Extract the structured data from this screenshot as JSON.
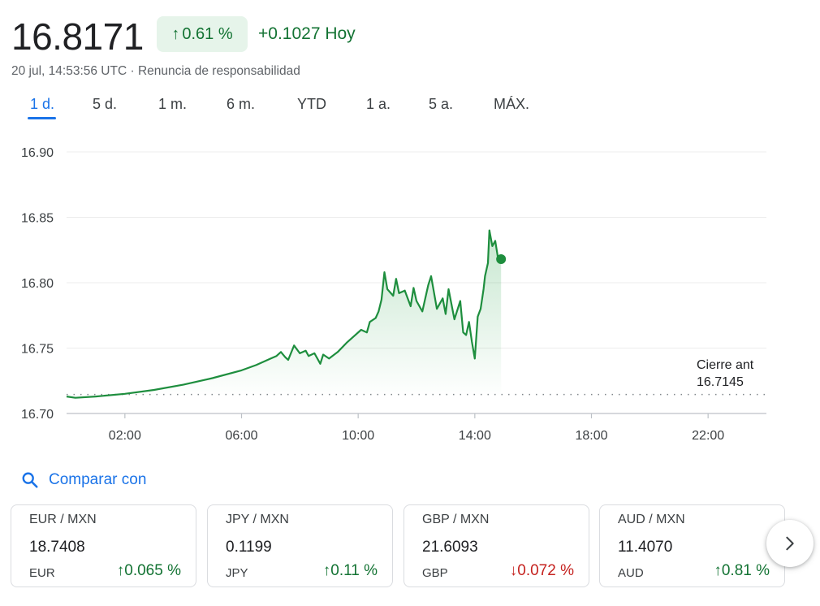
{
  "header": {
    "price": "16.8171",
    "change_pct": "0.61 %",
    "change_abs": "+0.1027 Hoy",
    "timestamp": "20 jul, 14:53:56 UTC · Renuncia de responsabilidad"
  },
  "ranges": [
    {
      "label": "1 d.",
      "active": true
    },
    {
      "label": "5 d.",
      "active": false
    },
    {
      "label": "1 m.",
      "active": false
    },
    {
      "label": "6 m.",
      "active": false
    },
    {
      "label": "YTD",
      "active": false
    },
    {
      "label": "1 a.",
      "active": false
    },
    {
      "label": "5 a.",
      "active": false
    },
    {
      "label": "MÁX.",
      "active": false
    }
  ],
  "chart_data": {
    "type": "area",
    "x_unit": "hour of day (UTC)",
    "xlim": [
      0,
      24
    ],
    "ylim": [
      16.7,
      16.9
    ],
    "y_ticks": [
      "16.90",
      "16.85",
      "16.80",
      "16.75",
      "16.70"
    ],
    "x_ticks": [
      "02:00",
      "06:00",
      "10:00",
      "14:00",
      "18:00",
      "22:00"
    ],
    "grid": true,
    "line_color": "#1e8e3e",
    "prev_close": 16.7145,
    "prev_close_label": "Cierre ant",
    "prev_close_value": "16.7145",
    "series": [
      {
        "x": [
          0,
          0.3,
          1,
          2,
          3,
          4,
          5,
          6,
          6.5,
          7,
          7.2,
          7.35,
          7.5,
          7.6,
          7.8,
          8.0,
          8.2,
          8.3,
          8.5,
          8.7,
          8.8,
          9.0,
          9.3,
          9.6,
          9.9,
          10.1,
          10.3,
          10.4,
          10.6,
          10.7,
          10.8,
          10.9,
          11.0,
          11.2,
          11.3,
          11.4,
          11.6,
          11.8,
          11.9,
          12.0,
          12.2,
          12.4,
          12.5,
          12.7,
          12.9,
          13.0,
          13.1,
          13.3,
          13.5,
          13.6,
          13.7,
          13.8,
          13.9,
          14.0,
          14.1,
          14.2,
          14.3,
          14.35,
          14.45,
          14.5,
          14.6,
          14.7,
          14.8,
          14.9
        ],
        "y": [
          16.713,
          16.712,
          16.713,
          16.715,
          16.718,
          16.722,
          16.727,
          16.733,
          16.737,
          16.742,
          16.744,
          16.747,
          16.743,
          16.741,
          16.752,
          16.746,
          16.748,
          16.744,
          16.746,
          16.738,
          16.745,
          16.742,
          16.747,
          16.754,
          16.76,
          16.764,
          16.762,
          16.77,
          16.773,
          16.778,
          16.787,
          16.808,
          16.795,
          16.79,
          16.803,
          16.792,
          16.794,
          16.782,
          16.796,
          16.786,
          16.778,
          16.798,
          16.805,
          16.78,
          16.788,
          16.776,
          16.795,
          16.772,
          16.786,
          16.762,
          16.76,
          16.77,
          16.755,
          16.742,
          16.774,
          16.78,
          16.795,
          16.805,
          16.815,
          16.84,
          16.828,
          16.832,
          16.818,
          16.818
        ]
      }
    ]
  },
  "compare": {
    "label": "Comparar con",
    "icon": "search-icon"
  },
  "cards": [
    {
      "pair": "EUR / MXN",
      "value": "18.7408",
      "base": "EUR",
      "arrow": "↑",
      "pct": "0.065 %",
      "dir": "up"
    },
    {
      "pair": "JPY / MXN",
      "value": "0.1199",
      "base": "JPY",
      "arrow": "↑",
      "pct": "0.11 %",
      "dir": "up"
    },
    {
      "pair": "GBP / MXN",
      "value": "21.6093",
      "base": "GBP",
      "arrow": "↓",
      "pct": "0.072 %",
      "dir": "down"
    },
    {
      "pair": "AUD / MXN",
      "value": "11.4070",
      "base": "AUD",
      "arrow": "↑",
      "pct": "0.81 %",
      "dir": "up"
    }
  ],
  "colors": {
    "up": "#137333",
    "down": "#c5221f",
    "accent": "#1a73e8"
  }
}
